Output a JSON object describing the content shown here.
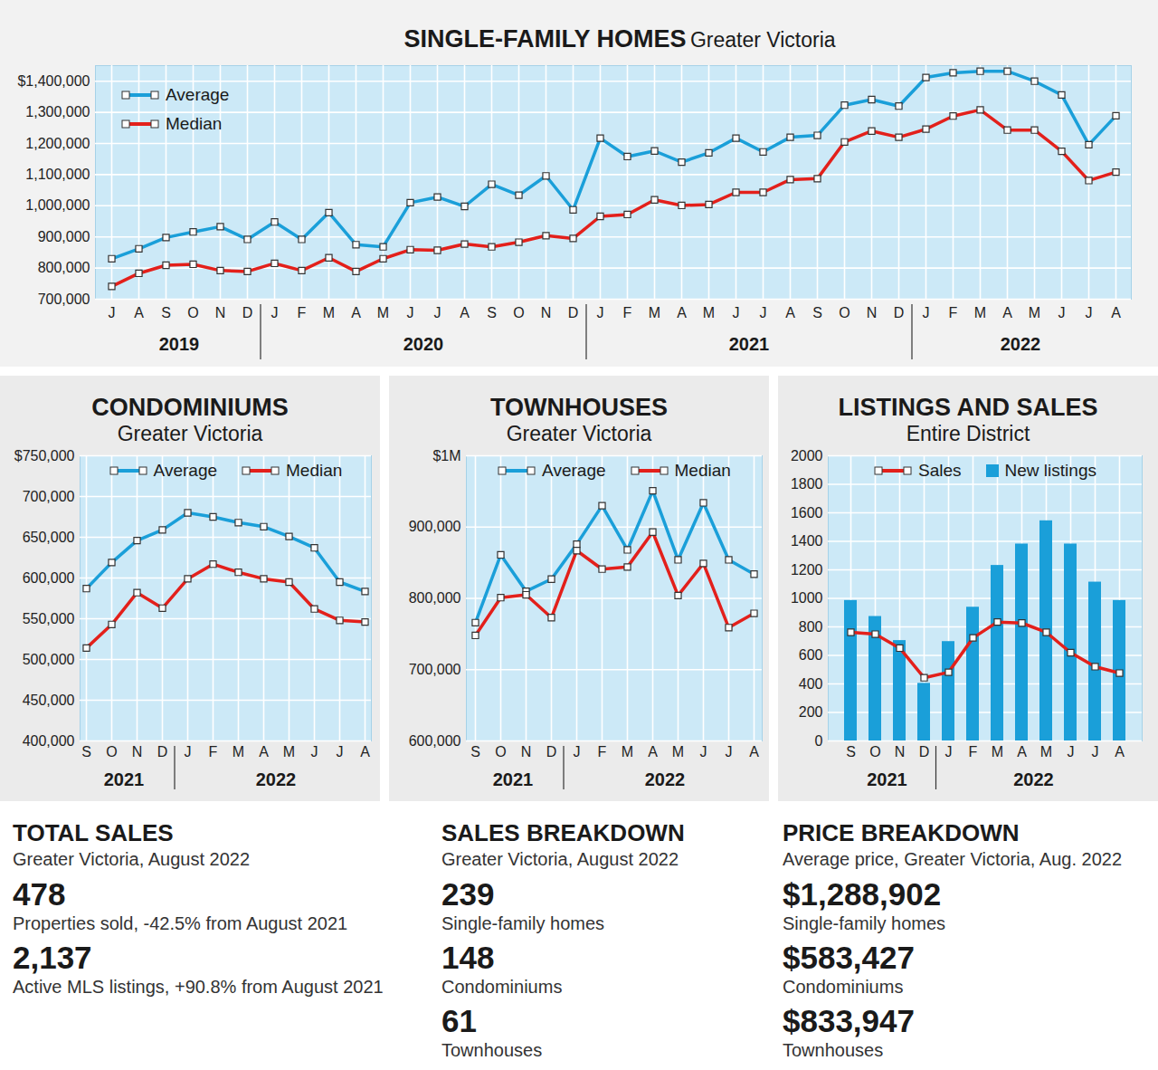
{
  "chart_data": [
    {
      "type": "line",
      "title": "SINGLE-FAMILY HOMES",
      "subtitle": "Greater Victoria",
      "categories": [
        "J",
        "A",
        "S",
        "O",
        "N",
        "D",
        "J",
        "F",
        "M",
        "A",
        "M",
        "J",
        "J",
        "A",
        "S",
        "O",
        "N",
        "D",
        "J",
        "F",
        "M",
        "A",
        "M",
        "J",
        "J",
        "A",
        "S",
        "O",
        "N",
        "D",
        "J",
        "F",
        "M",
        "A",
        "M",
        "J",
        "J",
        "A"
      ],
      "years": [
        "2019",
        "2020",
        "2021",
        "2022"
      ],
      "series": [
        {
          "name": "Average",
          "color": "#1a9fd9",
          "marker": "square",
          "values": [
            830000,
            862000,
            898000,
            916000,
            933000,
            892000,
            948000,
            892000,
            978000,
            875000,
            868000,
            1010000,
            1028000,
            998000,
            1069000,
            1034000,
            1096000,
            987000,
            1217000,
            1158000,
            1176000,
            1140000,
            1170000,
            1217000,
            1173000,
            1220000,
            1226000,
            1323000,
            1341000,
            1320000,
            1412000,
            1427000,
            1432000,
            1432000,
            1400000,
            1356000,
            1196000,
            1288902
          ]
        },
        {
          "name": "Median",
          "color": "#e3201b",
          "marker": "square",
          "values": [
            741000,
            783000,
            809000,
            812000,
            792000,
            789000,
            815000,
            792000,
            833000,
            789000,
            830000,
            859000,
            857000,
            877000,
            868000,
            883000,
            904000,
            895000,
            966000,
            972000,
            1019000,
            1001000,
            1004000,
            1043000,
            1043000,
            1084000,
            1087000,
            1205000,
            1240000,
            1220000,
            1246000,
            1288000,
            1308000,
            1243000,
            1243000,
            1175000,
            1081000,
            1108000
          ]
        }
      ],
      "ylim": [
        700000,
        1450000
      ],
      "yticks": [
        {
          "value": 700000,
          "label": "700,000"
        },
        {
          "value": 800000,
          "label": "800,000"
        },
        {
          "value": 900000,
          "label": "900,000"
        },
        {
          "value": 1000000,
          "label": "1,000,000"
        },
        {
          "value": 1100000,
          "label": "1,100,000"
        },
        {
          "value": 1200000,
          "label": "1,200,000"
        },
        {
          "value": 1300000,
          "label": "1,300,000"
        },
        {
          "value": 1400000,
          "label": "$1,400,000"
        }
      ],
      "grid": true,
      "legend": "top-left"
    },
    {
      "type": "line",
      "title": "CONDOMINIUMS",
      "subtitle": "Greater Victoria",
      "categories": [
        "S",
        "O",
        "N",
        "D",
        "J",
        "F",
        "M",
        "A",
        "M",
        "J",
        "J",
        "A"
      ],
      "years": [
        "2021",
        "2022"
      ],
      "series": [
        {
          "name": "Average",
          "color": "#1a9fd9",
          "marker": "square",
          "values": [
            587000,
            619000,
            646000,
            659000,
            680000,
            675000,
            668000,
            663000,
            651000,
            637000,
            595000,
            583427
          ]
        },
        {
          "name": "Median",
          "color": "#e3201b",
          "marker": "square",
          "values": [
            514000,
            543000,
            582000,
            563000,
            599000,
            617000,
            607000,
            599000,
            595000,
            562000,
            548000,
            546000
          ]
        }
      ],
      "ylim": [
        400000,
        750000
      ],
      "yticks": [
        {
          "value": 400000,
          "label": "400,000"
        },
        {
          "value": 450000,
          "label": "450,000"
        },
        {
          "value": 500000,
          "label": "500,000"
        },
        {
          "value": 550000,
          "label": "550,000"
        },
        {
          "value": 600000,
          "label": "600,000"
        },
        {
          "value": 650000,
          "label": "650,000"
        },
        {
          "value": 700000,
          "label": "700,000"
        },
        {
          "value": 750000,
          "label": "$750,000"
        }
      ],
      "grid": true,
      "legend": "top"
    },
    {
      "type": "line",
      "title": "TOWNHOUSES",
      "subtitle": "Greater Victoria",
      "categories": [
        "S",
        "O",
        "N",
        "D",
        "J",
        "F",
        "M",
        "A",
        "M",
        "J",
        "J",
        "A"
      ],
      "years": [
        "2021",
        "2022"
      ],
      "series": [
        {
          "name": "Average",
          "color": "#1a9fd9",
          "marker": "square",
          "values": [
            766000,
            861000,
            810000,
            827000,
            876000,
            930000,
            868000,
            951000,
            854000,
            934000,
            854000,
            833947
          ]
        },
        {
          "name": "Median",
          "color": "#e3201b",
          "marker": "square",
          "values": [
            748000,
            801000,
            805000,
            773000,
            867000,
            841000,
            844000,
            893000,
            804000,
            849000,
            759000,
            779000
          ]
        }
      ],
      "ylim": [
        600000,
        1000000
      ],
      "yticks": [
        {
          "value": 600000,
          "label": "600,000"
        },
        {
          "value": 700000,
          "label": "700,000"
        },
        {
          "value": 800000,
          "label": "800,000"
        },
        {
          "value": 900000,
          "label": "900,000"
        },
        {
          "value": 1000000,
          "label": "$1M"
        }
      ],
      "grid": true,
      "legend": "top"
    },
    {
      "type": "bar",
      "title": "LISTINGS AND SALES",
      "subtitle": "Entire District",
      "categories": [
        "S",
        "O",
        "N",
        "D",
        "J",
        "F",
        "M",
        "A",
        "M",
        "J",
        "J",
        "A"
      ],
      "years": [
        "2021",
        "2022"
      ],
      "series": [
        {
          "name": "Sales",
          "type": "line",
          "color": "#e3201b",
          "marker": "square",
          "values": [
            762,
            749,
            651,
            443,
            482,
            723,
            834,
            827,
            762,
            619,
            521,
            476
          ]
        },
        {
          "name": "New listings",
          "type": "bar",
          "color": "#1a9fd9",
          "values": [
            985,
            873,
            704,
            404,
            697,
            938,
            1231,
            1381,
            1544,
            1381,
            1114,
            985
          ]
        }
      ],
      "ylim": [
        0,
        2000
      ],
      "yticks": [
        0,
        200,
        400,
        600,
        800,
        1000,
        1200,
        1400,
        1600,
        1800,
        2000
      ],
      "grid": true,
      "legend": "top"
    }
  ],
  "stats": [
    {
      "title": "TOTAL SALES",
      "subtitle": "Greater Victoria, August 2022",
      "items": [
        {
          "value": "478",
          "label": "Properties sold, -42.5% from August 2021"
        },
        {
          "value": "2,137",
          "label": "Active MLS listings, +90.8% from August 2021"
        }
      ]
    },
    {
      "title": "SALES BREAKDOWN",
      "subtitle": "Greater Victoria, August 2022",
      "items": [
        {
          "value": "239",
          "label": "Single-family homes"
        },
        {
          "value": "148",
          "label": "Condominiums"
        },
        {
          "value": "61",
          "label": "Townhouses"
        }
      ]
    },
    {
      "title": "PRICE BREAKDOWN",
      "subtitle": "Average price, Greater Victoria, Aug. 2022",
      "items": [
        {
          "value": "$1,288,902",
          "label": "Single-family homes"
        },
        {
          "value": "$583,427",
          "label": "Condominiums"
        },
        {
          "value": "$833,947",
          "label": "Townhouses"
        }
      ]
    }
  ]
}
